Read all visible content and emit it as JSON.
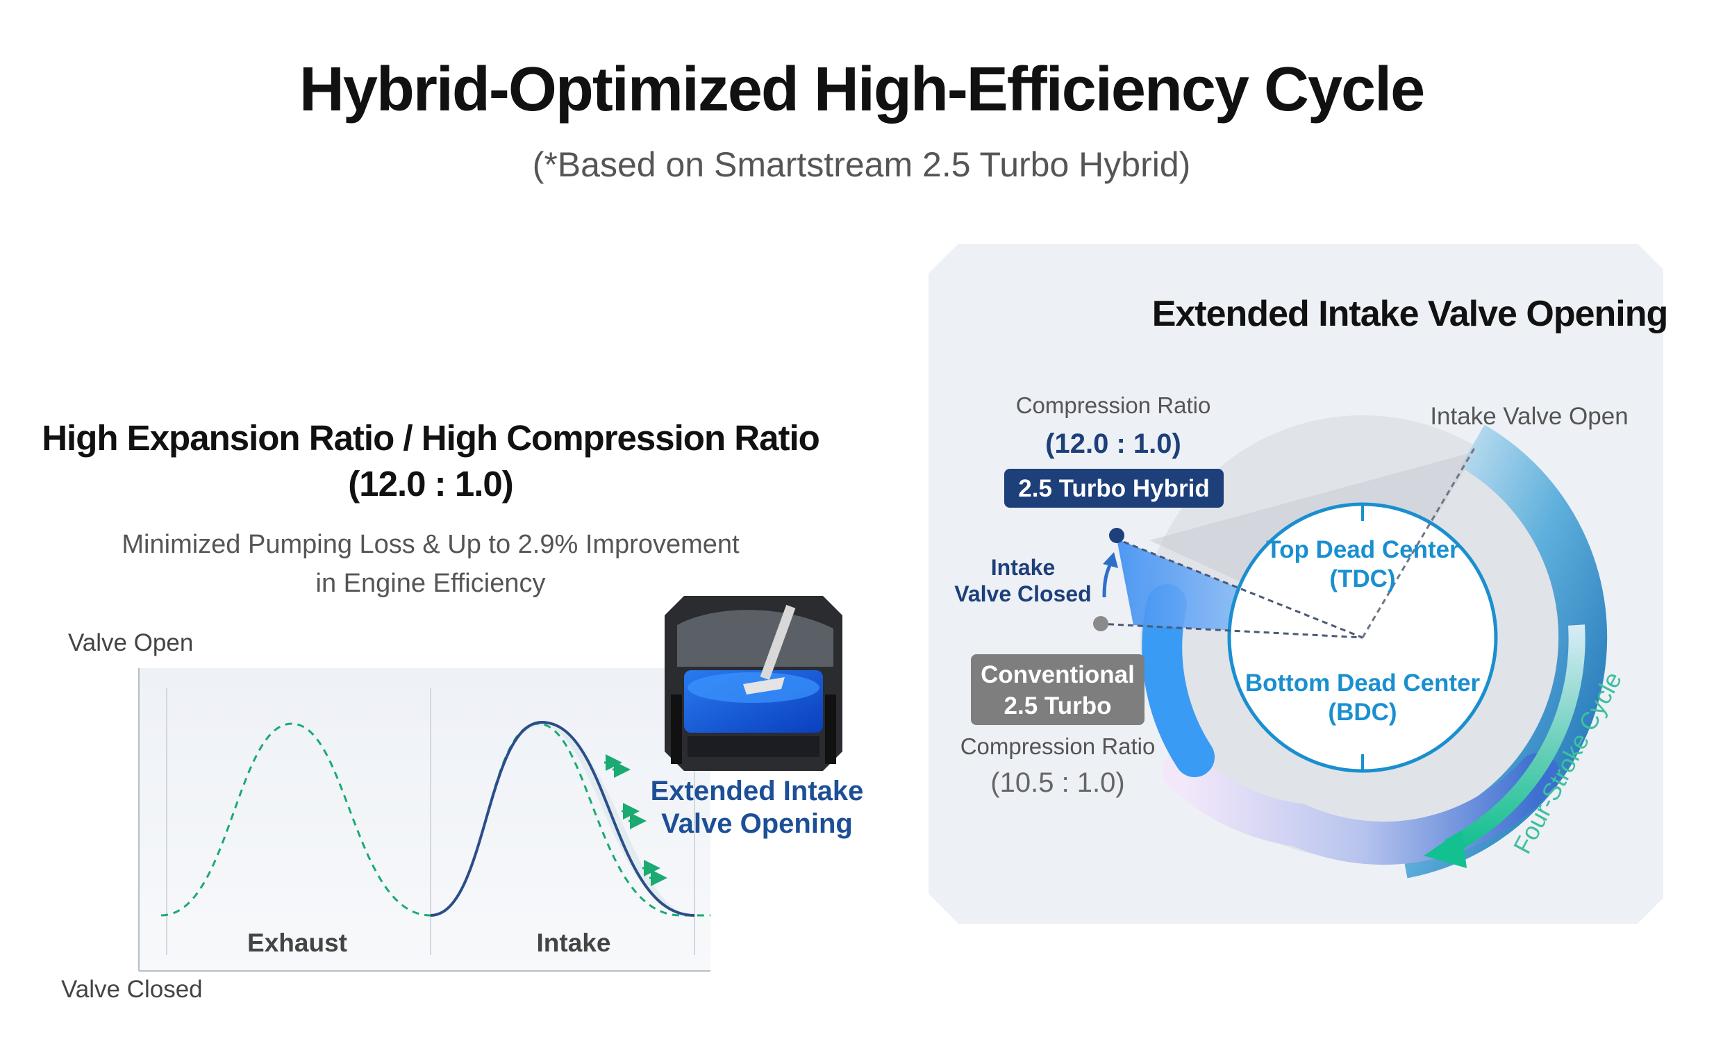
{
  "title": "Hybrid-Optimized High-Efficiency Cycle",
  "subtitle": "(*Based on Smartstream 2.5 Turbo Hybrid)",
  "left": {
    "title_line1": "High Expansion Ratio / High Compression Ratio",
    "title_line2": "(12.0 : 1.0)",
    "desc_line1": "Minimized Pumping Loss & Up to 2.9% Improvement",
    "desc_line2": "in Engine Efficiency",
    "valve_open": "Valve Open",
    "valve_closed": "Valve Closed",
    "exhaust": "Exhaust",
    "intake": "Intake",
    "extended_line1": "Extended Intake",
    "extended_line2": "Valve Opening"
  },
  "right": {
    "title": "Extended Intake Valve Opening",
    "hybrid_ratio_label": "Compression Ratio",
    "hybrid_ratio_value": "(12.0 : 1.0)",
    "hybrid_badge": "2.5 Turbo Hybrid",
    "intake_valve_closed_line1": "Intake",
    "intake_valve_closed_line2": "Valve Closed",
    "intake_valve_open": "Intake Valve Open",
    "conventional_line1": "Conventional",
    "conventional_line2": "2.5 Turbo",
    "conventional_ratio_label": "Compression Ratio",
    "conventional_ratio_value": "(10.5 : 1.0)",
    "tdc_line1": "Top Dead Center",
    "tdc_line2": "(TDC)",
    "bdc_line1": "Bottom Dead Center",
    "bdc_line2": "(BDC)",
    "cycle_label": "Four-Stroke Cycle"
  },
  "colors": {
    "navy": "#1d3f7a",
    "blue": "#1a8fd0",
    "green": "#1aaa72",
    "gray_badge": "#7e7e7e",
    "panel": "#edf0f5"
  }
}
